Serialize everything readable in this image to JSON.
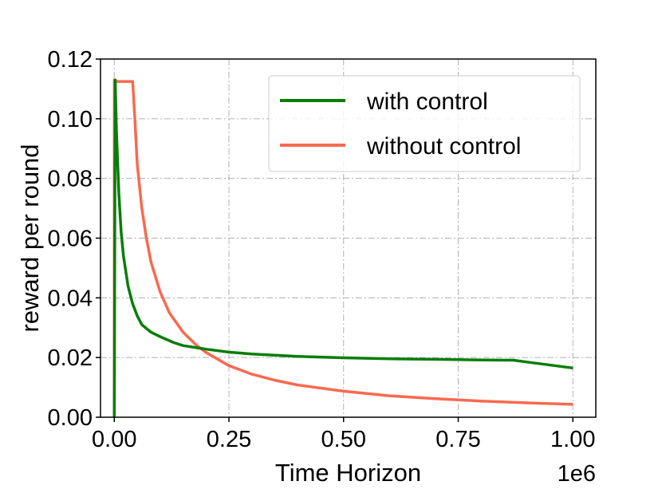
{
  "chart_data": {
    "type": "line",
    "title": "",
    "xlabel": "Time Horizon",
    "ylabel": "reward per round",
    "x_offset_label": "1e6",
    "xlim": [
      -0.03,
      1.05
    ],
    "ylim": [
      0.0,
      0.12
    ],
    "x_ticks": [
      0.0,
      0.25,
      0.5,
      0.75,
      1.0
    ],
    "x_tick_labels": [
      "0.00",
      "0.25",
      "0.50",
      "0.75",
      "1.00"
    ],
    "y_ticks": [
      0.0,
      0.02,
      0.04,
      0.06,
      0.08,
      0.1,
      0.12
    ],
    "y_tick_labels": [
      "0.00",
      "0.02",
      "0.04",
      "0.06",
      "0.08",
      "0.10",
      "0.12"
    ],
    "grid": true,
    "legend_position": "top-right",
    "series": [
      {
        "name": "with control",
        "color": "#087d08",
        "x": [
          0.0,
          0.002,
          0.005,
          0.01,
          0.015,
          0.02,
          0.03,
          0.04,
          0.05,
          0.06,
          0.08,
          0.1,
          0.13,
          0.15,
          0.2,
          0.25,
          0.3,
          0.35,
          0.4,
          0.5,
          0.6,
          0.7,
          0.8,
          0.87,
          0.9,
          1.0
        ],
        "y": [
          0.0,
          0.113,
          0.095,
          0.075,
          0.062,
          0.054,
          0.044,
          0.038,
          0.034,
          0.031,
          0.0285,
          0.027,
          0.025,
          0.024,
          0.0228,
          0.0218,
          0.0212,
          0.0208,
          0.0204,
          0.0199,
          0.0196,
          0.0194,
          0.0192,
          0.0191,
          0.0185,
          0.0165
        ]
      },
      {
        "name": "without control",
        "color": "#f86a50",
        "x": [
          0.0,
          0.0002,
          0.002,
          0.005,
          0.04,
          0.045,
          0.05,
          0.06,
          0.07,
          0.08,
          0.1,
          0.12,
          0.15,
          0.18,
          0.2,
          0.25,
          0.3,
          0.35,
          0.4,
          0.5,
          0.6,
          0.7,
          0.8,
          0.9,
          1.0
        ],
        "y": [
          0.0,
          0.113,
          0.113,
          0.1125,
          0.1125,
          0.1,
          0.085,
          0.07,
          0.06,
          0.052,
          0.042,
          0.035,
          0.0285,
          0.024,
          0.0217,
          0.0173,
          0.0144,
          0.0124,
          0.0108,
          0.0087,
          0.0072,
          0.0062,
          0.0054,
          0.0048,
          0.0043
        ]
      }
    ]
  }
}
